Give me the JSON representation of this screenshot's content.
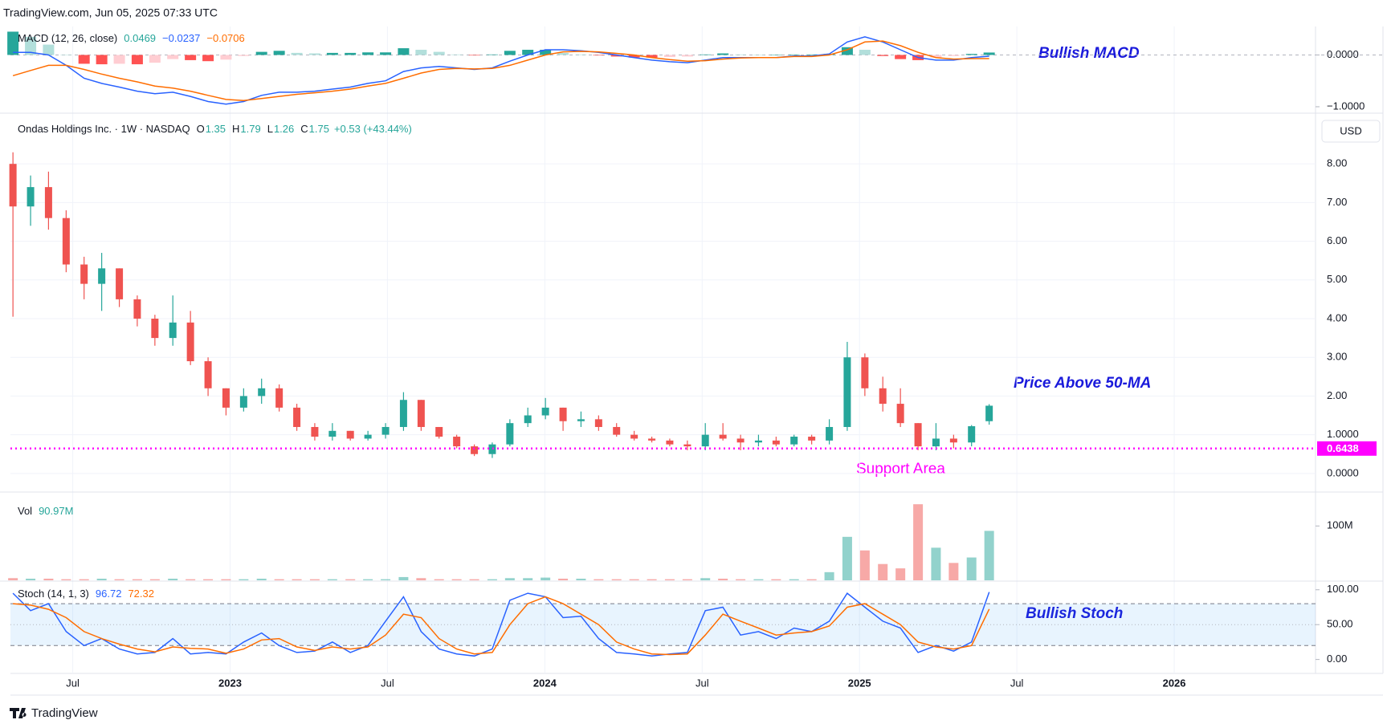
{
  "header": "TradingView.com, Jun 05, 2025 07:33 UTC",
  "footer": "TradingView",
  "currency": "USD",
  "time_axis": {
    "xlim": [
      2022.302,
      2026.449
    ],
    "xticks": [
      {
        "value": 2022.5,
        "label": "Jul"
      },
      2023,
      {
        "value": 2023.5,
        "label": "Jul"
      },
      2024,
      {
        "value": 2024.5,
        "label": "Jul"
      },
      2025,
      {
        "value": 2025.5,
        "label": "Jul"
      },
      2026
    ],
    "x": [
      2022.31,
      2022.366,
      2022.423,
      2022.479,
      2022.536,
      2022.592,
      2022.648,
      2022.705,
      2022.761,
      2022.818,
      2022.874,
      2022.93,
      2022.987,
      2023.043,
      2023.1,
      2023.156,
      2023.212,
      2023.269,
      2023.325,
      2023.382,
      2023.438,
      2023.494,
      2023.551,
      2023.607,
      2023.664,
      2023.72,
      2023.776,
      2023.833,
      2023.889,
      2023.946,
      2024.002,
      2024.058,
      2024.115,
      2024.171,
      2024.228,
      2024.284,
      2024.34,
      2024.397,
      2024.453,
      2024.51,
      2024.566,
      2024.622,
      2024.679,
      2024.735,
      2024.792,
      2024.848,
      2024.904,
      2024.961,
      2025.017,
      2025.074,
      2025.13,
      2025.186,
      2025.243,
      2025.299,
      2025.356,
      2025.412
    ]
  },
  "chart_data": [
    {
      "type": "line",
      "title": "MACD (12, 26, close)",
      "legend_labels": [
        "0.0469",
        "−0.0237",
        "−0.0706"
      ],
      "annotation": "Bullish MACD",
      "annotation_color": "#1a1adb",
      "ylim": [
        -1.14,
        0.55
      ],
      "yticks": [
        {
          "value": -1,
          "label": "−1.0000"
        },
        {
          "value": 0,
          "label": "0.0000"
        }
      ],
      "zero_line": true,
      "histogram": {
        "colors": [
          "#26a69a",
          "#b2dfdb",
          "#ff5252",
          "#ffcdd2"
        ],
        "values": [
          0.45,
          0.35,
          0.2,
          0,
          -0.17,
          -0.18,
          -0.17,
          -0.18,
          -0.15,
          -0.08,
          -0.1,
          -0.12,
          -0.09,
          -0.02,
          0.06,
          0.08,
          0.04,
          0.03,
          0.04,
          0.04,
          0.05,
          0.05,
          0.13,
          0.1,
          0.06,
          0.01,
          -0.01,
          0.01,
          0.08,
          0.1,
          0.1,
          0.04,
          0.01,
          -0.01,
          -0.03,
          -0.05,
          -0.05,
          -0.04,
          -0.03,
          0.01,
          0.03,
          0.01,
          0,
          0,
          0.01,
          0.01,
          0.02,
          0.15,
          0.1,
          -0.02,
          -0.08,
          -0.1,
          -0.05,
          -0.02,
          0.02,
          0.0469
        ]
      },
      "series": [
        {
          "color": "#2962ff",
          "values": [
            0.05,
            0.05,
            0.0,
            -0.2,
            -0.45,
            -0.55,
            -0.62,
            -0.7,
            -0.75,
            -0.72,
            -0.8,
            -0.9,
            -0.95,
            -0.9,
            -0.78,
            -0.72,
            -0.72,
            -0.7,
            -0.66,
            -0.62,
            -0.55,
            -0.5,
            -0.32,
            -0.25,
            -0.22,
            -0.25,
            -0.28,
            -0.25,
            -0.12,
            0.0,
            0.1,
            0.1,
            0.08,
            0.05,
            0.0,
            -0.05,
            -0.1,
            -0.13,
            -0.15,
            -0.1,
            -0.05,
            -0.05,
            -0.05,
            -0.05,
            -0.02,
            -0.02,
            0.02,
            0.25,
            0.35,
            0.25,
            0.1,
            -0.05,
            -0.1,
            -0.1,
            -0.05,
            -0.0237
          ]
        },
        {
          "color": "#ff6d00",
          "values": [
            -0.4,
            -0.3,
            -0.2,
            -0.2,
            -0.28,
            -0.37,
            -0.45,
            -0.52,
            -0.6,
            -0.64,
            -0.7,
            -0.78,
            -0.86,
            -0.88,
            -0.84,
            -0.8,
            -0.76,
            -0.73,
            -0.7,
            -0.66,
            -0.6,
            -0.55,
            -0.45,
            -0.35,
            -0.28,
            -0.26,
            -0.27,
            -0.26,
            -0.2,
            -0.1,
            0.0,
            0.06,
            0.07,
            0.06,
            0.03,
            0.0,
            -0.05,
            -0.09,
            -0.12,
            -0.11,
            -0.08,
            -0.06,
            -0.05,
            -0.05,
            -0.03,
            -0.03,
            0.0,
            0.1,
            0.25,
            0.27,
            0.18,
            0.05,
            -0.05,
            -0.08,
            -0.07,
            -0.0706
          ]
        }
      ]
    },
    {
      "type": "candlestick",
      "title": "Ondas Holdings Inc. · 1W · NASDAQ",
      "ohlc_letters": [
        "O",
        "H",
        "L",
        "C"
      ],
      "change_label": "+0.53 (+43.44%)",
      "annotations": [
        "Price Above 50-MA",
        "Support Area"
      ],
      "annotation_colors": [
        "#1a1adb",
        "#ff00ff"
      ],
      "up_color": "#26a69a",
      "down_color": "#ef5350",
      "ylim": [
        -0.46,
        9.29
      ],
      "yticks": [
        {
          "value": 0,
          "label": "0.0000"
        },
        {
          "value": 1,
          "label": "1.0000"
        },
        {
          "value": 2,
          "label": "2.00"
        },
        {
          "value": 3,
          "label": "3.00"
        },
        {
          "value": 4,
          "label": "4.00"
        },
        {
          "value": 5,
          "label": "5.00"
        },
        {
          "value": 6,
          "label": "6.00"
        },
        {
          "value": 7,
          "label": "7.00"
        },
        {
          "value": 8,
          "label": "8.00"
        }
      ],
      "grid": true,
      "support": 0.6438,
      "support_color": "#ff00ff",
      "open": [
        8.0,
        6.9,
        7.4,
        6.6,
        5.4,
        4.9,
        5.3,
        4.5,
        4.0,
        3.5,
        3.9,
        2.9,
        2.2,
        1.7,
        2.0,
        2.2,
        1.7,
        1.2,
        0.95,
        1.1,
        0.9,
        1.0,
        1.2,
        1.9,
        1.2,
        0.95,
        0.7,
        0.5,
        0.75,
        1.3,
        1.5,
        1.7,
        1.35,
        1.4,
        1.2,
        1.0,
        0.9,
        0.85,
        0.75,
        0.7,
        1.0,
        0.9,
        0.8,
        0.85,
        0.75,
        0.95,
        0.85,
        1.2,
        3.0,
        2.2,
        1.8,
        1.3,
        0.7,
        0.9,
        0.8,
        1.35
      ],
      "high": [
        8.3,
        7.7,
        7.8,
        6.8,
        5.6,
        5.7,
        5.3,
        4.6,
        4.1,
        4.6,
        4.2,
        3.0,
        2.2,
        2.2,
        2.45,
        2.3,
        1.8,
        1.3,
        1.3,
        1.1,
        1.1,
        1.3,
        2.1,
        1.9,
        1.2,
        1.0,
        0.75,
        0.8,
        1.4,
        1.7,
        1.95,
        1.7,
        1.6,
        1.5,
        1.3,
        1.1,
        0.95,
        0.9,
        0.85,
        1.3,
        1.3,
        1.0,
        1.0,
        0.95,
        1.0,
        1.0,
        1.4,
        3.4,
        3.1,
        2.5,
        2.2,
        1.3,
        1.3,
        1.0,
        1.25,
        1.79
      ],
      "low": [
        4.05,
        6.4,
        6.3,
        5.2,
        4.5,
        4.2,
        4.3,
        3.8,
        3.3,
        3.3,
        2.8,
        2.0,
        1.5,
        1.6,
        1.8,
        1.6,
        1.1,
        0.85,
        0.85,
        0.85,
        0.85,
        0.9,
        1.1,
        1.1,
        0.9,
        0.65,
        0.45,
        0.4,
        0.7,
        1.2,
        1.4,
        1.1,
        1.2,
        1.1,
        0.95,
        0.85,
        0.8,
        0.7,
        0.6,
        0.6,
        0.85,
        0.6,
        0.7,
        0.7,
        0.7,
        0.75,
        0.75,
        1.1,
        2.0,
        1.6,
        1.2,
        0.6,
        0.6,
        0.65,
        0.7,
        1.26
      ],
      "close": [
        6.9,
        7.4,
        6.6,
        5.4,
        4.9,
        5.3,
        4.5,
        4.0,
        3.5,
        3.9,
        2.9,
        2.2,
        1.7,
        2.0,
        2.2,
        1.7,
        1.2,
        0.95,
        1.1,
        0.9,
        1.0,
        1.2,
        1.9,
        1.2,
        0.95,
        0.7,
        0.5,
        0.75,
        1.3,
        1.5,
        1.7,
        1.35,
        1.4,
        1.2,
        1.0,
        0.9,
        0.85,
        0.75,
        0.7,
        1.0,
        0.9,
        0.8,
        0.85,
        0.75,
        0.95,
        0.85,
        1.2,
        3.0,
        2.2,
        1.8,
        1.3,
        0.7,
        0.9,
        0.8,
        1.22,
        1.75
      ]
    },
    {
      "type": "bar",
      "title": "Vol",
      "legend_label": "90.97M",
      "up_color": "#26a69a80",
      "down_color": "#ef535080",
      "ylim": [
        0,
        161000000
      ],
      "yticks": [
        {
          "value": 100000000,
          "label": "100M"
        }
      ],
      "values": [
        4000000.0,
        3000000.0,
        3000000.0,
        2000000.0,
        2000000.0,
        3000000.0,
        2000000.0,
        2000000.0,
        2000000.0,
        3000000.0,
        2000000.0,
        2000000.0,
        2000000.0,
        2000000.0,
        3000000.0,
        2000000.0,
        2000000.0,
        2000000.0,
        2000000.0,
        2000000.0,
        2000000.0,
        2000000.0,
        6000000.0,
        4000000.0,
        2000000.0,
        2000000.0,
        2000000.0,
        2000000.0,
        4000000.0,
        4000000.0,
        5000000.0,
        3000000.0,
        3000000.0,
        2000000.0,
        2000000.0,
        2000000.0,
        2000000.0,
        2000000.0,
        2000000.0,
        4000000.0,
        3000000.0,
        2000000.0,
        2000000.0,
        2000000.0,
        2000000.0,
        2000000.0,
        15000000.0,
        80000000.0,
        55000000.0,
        30000000.0,
        22000000.0,
        140000000.0,
        60000000.0,
        32000000.0,
        42000000.0,
        90970000.0
      ]
    },
    {
      "type": "line",
      "title": "Stoch (14, 1, 3)",
      "annotation": "Bullish Stoch",
      "annotation_color": "#1a1adb",
      "ylim": [
        -20,
        111.25
      ],
      "yticks": [
        {
          "value": 0,
          "label": "0.00"
        },
        {
          "value": 50,
          "label": "50.00"
        },
        {
          "value": 100,
          "label": "100.00"
        }
      ],
      "band": [
        20,
        80
      ],
      "band_color": "#2196f31a",
      "series": [
        {
          "color": "#2962ff",
          "values": [
            95,
            70,
            80,
            40,
            20,
            30,
            15,
            8,
            10,
            30,
            8,
            10,
            8,
            25,
            38,
            20,
            10,
            12,
            25,
            10,
            20,
            55,
            90,
            40,
            15,
            8,
            5,
            15,
            85,
            95,
            90,
            60,
            62,
            30,
            10,
            8,
            5,
            8,
            10,
            70,
            75,
            35,
            40,
            30,
            45,
            40,
            55,
            95,
            75,
            55,
            45,
            10,
            20,
            12,
            25,
            96.72
          ]
        },
        {
          "color": "#ff6d00",
          "values": [
            80,
            78,
            72,
            60,
            40,
            30,
            22,
            15,
            11,
            18,
            16,
            15,
            9,
            15,
            28,
            30,
            18,
            13,
            18,
            15,
            18,
            35,
            65,
            60,
            30,
            15,
            8,
            10,
            50,
            80,
            90,
            80,
            65,
            50,
            25,
            15,
            8,
            7,
            8,
            35,
            65,
            55,
            45,
            35,
            38,
            40,
            48,
            75,
            80,
            65,
            50,
            25,
            18,
            15,
            20,
            72.32
          ]
        }
      ]
    }
  ]
}
